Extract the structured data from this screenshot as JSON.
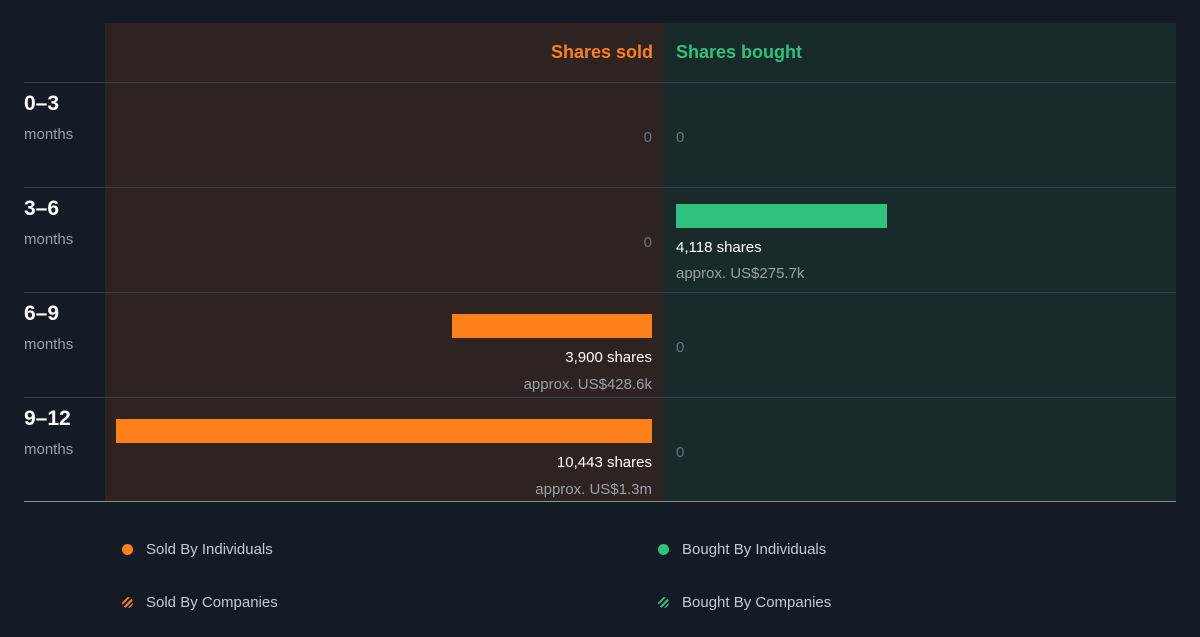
{
  "chart_data": {
    "type": "bar",
    "orientation": "horizontal-diverging",
    "headers": {
      "sold": "Shares sold",
      "bought": "Shares bought"
    },
    "periods": [
      {
        "label": "0–3",
        "unit": "months",
        "sold": {
          "shares": 0,
          "shares_text": "0",
          "approx": ""
        },
        "bought": {
          "shares": 0,
          "shares_text": "0",
          "approx": ""
        }
      },
      {
        "label": "3–6",
        "unit": "months",
        "sold": {
          "shares": 0,
          "shares_text": "0",
          "approx": ""
        },
        "bought": {
          "shares": 4118,
          "shares_text": "4,118 shares",
          "approx": "approx. US$275.7k"
        }
      },
      {
        "label": "6–9",
        "unit": "months",
        "sold": {
          "shares": 3900,
          "shares_text": "3,900 shares",
          "approx": "approx. US$428.6k"
        },
        "bought": {
          "shares": 0,
          "shares_text": "0",
          "approx": ""
        }
      },
      {
        "label": "9–12",
        "unit": "months",
        "sold": {
          "shares": 10443,
          "shares_text": "10,443 shares",
          "approx": "approx. US$1.3m"
        },
        "bought": {
          "shares": 0,
          "shares_text": "0",
          "approx": ""
        }
      }
    ],
    "legend": [
      {
        "label": "Sold By Individuals",
        "color": "#ff7f1a",
        "style": "solid"
      },
      {
        "label": "Bought By Individuals",
        "color": "#2ec27e",
        "style": "solid"
      },
      {
        "label": "Sold By Companies",
        "color": "#ff7f1a",
        "style": "hatched"
      },
      {
        "label": "Bought By Companies",
        "color": "#2ec27e",
        "style": "hatched"
      }
    ],
    "colors": {
      "sold": "#ff7f1a",
      "bought": "#2ec27e",
      "background": "#151b24"
    }
  }
}
